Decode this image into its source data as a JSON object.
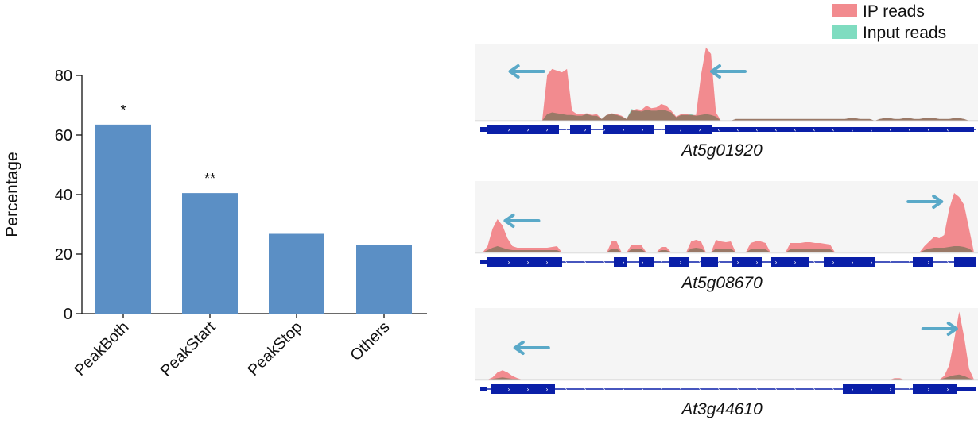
{
  "chart_data": [
    {
      "type": "bar",
      "categories": [
        "PeakBoth",
        "PeakStart",
        "PeakStop",
        "Others"
      ],
      "values": [
        63.5,
        40.5,
        26.8,
        23.0
      ],
      "annotations": [
        "*",
        "**",
        "",
        ""
      ],
      "title": "",
      "xlabel": "",
      "ylabel": "Percentage",
      "ylim": [
        0,
        80
      ],
      "yticks": [
        "0",
        "20",
        "40",
        "60",
        "80"
      ],
      "bar_color": "#5b8fc5",
      "grid": false
    },
    {
      "type": "area",
      "title": "",
      "legend": {
        "placement": "top-right",
        "entries": [
          {
            "label": "IP reads",
            "color": "#f28b8f"
          },
          {
            "label": "Input reads",
            "color": "#7fdcc0"
          }
        ]
      },
      "tracks": [
        {
          "gene": "At5g01920",
          "ip": [
            0,
            0,
            0,
            0,
            0,
            0,
            0,
            0,
            0,
            0,
            0,
            0,
            0,
            0.55,
            0.62,
            0.6,
            0.58,
            0.62,
            0.12,
            0.08,
            0.08,
            0.09,
            0.07,
            0.08,
            0.02,
            0.07,
            0.09,
            0.08,
            0.06,
            0.02,
            0.12,
            0.14,
            0.13,
            0.18,
            0.15,
            0.16,
            0.2,
            0.18,
            0.12,
            0.05,
            0.08,
            0.08,
            0.07,
            0.07,
            0.55,
            0.88,
            0.8,
            0.1,
            0,
            0,
            0,
            0.02,
            0.02,
            0.02,
            0.02,
            0.02,
            0.02,
            0.02,
            0.02,
            0.02,
            0.02,
            0.02,
            0.02,
            0.02,
            0.02,
            0.02,
            0.02,
            0.02,
            0.02,
            0.02,
            0.02,
            0.02,
            0.02,
            0.02,
            0.03,
            0.03,
            0.02,
            0.02,
            0.02,
            0,
            0.02,
            0.03,
            0.03,
            0.02,
            0.02,
            0.03,
            0.03,
            0.02,
            0.02,
            0.03,
            0.03,
            0.03,
            0.02,
            0.02,
            0.02,
            0.03,
            0.03,
            0.02,
            0,
            0
          ],
          "input": [
            0,
            0,
            0,
            0,
            0,
            0,
            0,
            0,
            0,
            0,
            0,
            0,
            0,
            0.08,
            0.1,
            0.09,
            0.08,
            0.07,
            0.07,
            0.06,
            0.06,
            0.08,
            0.06,
            0.06,
            0.02,
            0.07,
            0.08,
            0.07,
            0.05,
            0.02,
            0.14,
            0.12,
            0.11,
            0.13,
            0.12,
            0.12,
            0.13,
            0.12,
            0.1,
            0.04,
            0.07,
            0.07,
            0.08,
            0.06,
            0.07,
            0.08,
            0.07,
            0.05,
            0,
            0,
            0,
            0.02,
            0.02,
            0.02,
            0.02,
            0.02,
            0.02,
            0.02,
            0.02,
            0.02,
            0.02,
            0.02,
            0.02,
            0.02,
            0.02,
            0.02,
            0.02,
            0.02,
            0.02,
            0.02,
            0.02,
            0.02,
            0.02,
            0.02,
            0.03,
            0.03,
            0.02,
            0.02,
            0.02,
            0,
            0.02,
            0.03,
            0.03,
            0.02,
            0.02,
            0.03,
            0.03,
            0.02,
            0.02,
            0.03,
            0.03,
            0.03,
            0.02,
            0.02,
            0.02,
            0.03,
            0.03,
            0.02,
            0,
            0
          ],
          "arrows": [
            {
              "at": 0.09,
              "dir": "left"
            },
            {
              "at": 0.5,
              "dir": "left"
            }
          ]
        },
        {
          "gene": "At5g08670",
          "ip": [
            0,
            0.08,
            0.3,
            0.42,
            0.34,
            0.18,
            0.08,
            0.06,
            0.06,
            0.06,
            0.06,
            0.06,
            0.06,
            0.06,
            0.07,
            0.08,
            0,
            0,
            0,
            0,
            0,
            0,
            0,
            0,
            0,
            0,
            0.14,
            0.14,
            0,
            0,
            0.1,
            0.1,
            0.09,
            0,
            0,
            0,
            0.07,
            0.07,
            0,
            0,
            0,
            0,
            0.14,
            0.16,
            0.14,
            0,
            0,
            0.16,
            0.14,
            0.13,
            0.14,
            0,
            0,
            0,
            0.12,
            0.14,
            0.14,
            0.12,
            0,
            0,
            0,
            0,
            0.12,
            0.12,
            0.12,
            0.13,
            0.13,
            0.12,
            0.12,
            0.11,
            0.1,
            0,
            0,
            0,
            0,
            0,
            0,
            0,
            0,
            0,
            0,
            0,
            0,
            0,
            0,
            0,
            0,
            0,
            0,
            0.08,
            0.14,
            0.2,
            0.18,
            0.22,
            0.55,
            0.75,
            0.7,
            0.6,
            0.3,
            0
          ],
          "input": [
            0,
            0.03,
            0.06,
            0.08,
            0.06,
            0.04,
            0.03,
            0.03,
            0.03,
            0.03,
            0.03,
            0.03,
            0.03,
            0.03,
            0.03,
            0.03,
            0,
            0,
            0,
            0,
            0,
            0,
            0,
            0,
            0,
            0,
            0.05,
            0.05,
            0,
            0,
            0.04,
            0.04,
            0.04,
            0,
            0,
            0,
            0.03,
            0.03,
            0,
            0,
            0,
            0,
            0.05,
            0.06,
            0.05,
            0,
            0,
            0.05,
            0.05,
            0.05,
            0.05,
            0,
            0,
            0,
            0.04,
            0.05,
            0.05,
            0.04,
            0,
            0,
            0,
            0,
            0.04,
            0.04,
            0.04,
            0.04,
            0.04,
            0.04,
            0.04,
            0.04,
            0.04,
            0,
            0,
            0,
            0,
            0,
            0,
            0,
            0,
            0,
            0,
            0,
            0,
            0,
            0,
            0,
            0,
            0,
            0,
            0.03,
            0.05,
            0.06,
            0.06,
            0.06,
            0.07,
            0.08,
            0.08,
            0.07,
            0.05,
            0
          ],
          "arrows": [
            {
              "at": 0.08,
              "dir": "left"
            },
            {
              "at": 0.9,
              "dir": "right"
            }
          ]
        },
        {
          "gene": "At3g44610",
          "ip": [
            0,
            0,
            0.03,
            0.1,
            0.13,
            0.1,
            0.05,
            0.02,
            0,
            0,
            0,
            0,
            0,
            0,
            0,
            0,
            0,
            0,
            0,
            0,
            0,
            0,
            0,
            0,
            0,
            0,
            0,
            0,
            0,
            0,
            0,
            0,
            0,
            0,
            0,
            0,
            0,
            0,
            0,
            0,
            0,
            0,
            0,
            0,
            0,
            0,
            0,
            0,
            0,
            0,
            0,
            0,
            0,
            0,
            0,
            0,
            0,
            0,
            0,
            0,
            0,
            0,
            0,
            0,
            0,
            0,
            0,
            0,
            0,
            0,
            0,
            0,
            0,
            0,
            0,
            0,
            0,
            0,
            0,
            0,
            0,
            0,
            0,
            0.02,
            0.02,
            0,
            0,
            0,
            0,
            0,
            0,
            0,
            0,
            0.05,
            0.2,
            0.55,
            0.95,
            0.6,
            0.15,
            0
          ],
          "input": [
            0,
            0,
            0.01,
            0.02,
            0.03,
            0.02,
            0.01,
            0.01,
            0,
            0,
            0,
            0,
            0,
            0,
            0,
            0,
            0,
            0,
            0,
            0,
            0,
            0,
            0,
            0,
            0,
            0,
            0,
            0,
            0,
            0,
            0,
            0,
            0,
            0,
            0,
            0,
            0,
            0,
            0,
            0,
            0,
            0,
            0,
            0,
            0,
            0,
            0,
            0,
            0,
            0,
            0,
            0,
            0,
            0,
            0,
            0,
            0,
            0,
            0,
            0,
            0,
            0,
            0,
            0,
            0,
            0,
            0,
            0,
            0,
            0,
            0,
            0,
            0,
            0,
            0,
            0,
            0,
            0,
            0,
            0,
            0,
            0,
            0,
            0.01,
            0.01,
            0,
            0,
            0,
            0,
            0,
            0,
            0,
            0,
            0.02,
            0.04,
            0.06,
            0.07,
            0.05,
            0.02,
            0
          ],
          "arrows": [
            {
              "at": 0.1,
              "dir": "left"
            },
            {
              "at": 0.93,
              "dir": "right"
            }
          ]
        }
      ]
    }
  ],
  "colors": {
    "bar": "#5b8fc5",
    "ip": "#f28b8f",
    "input": "#7fdcc0",
    "overlap": "#8b7560",
    "gene_model": "#0a1fa8",
    "arrow": "#5aa9c8",
    "track_bg": "#f5f5f5"
  }
}
